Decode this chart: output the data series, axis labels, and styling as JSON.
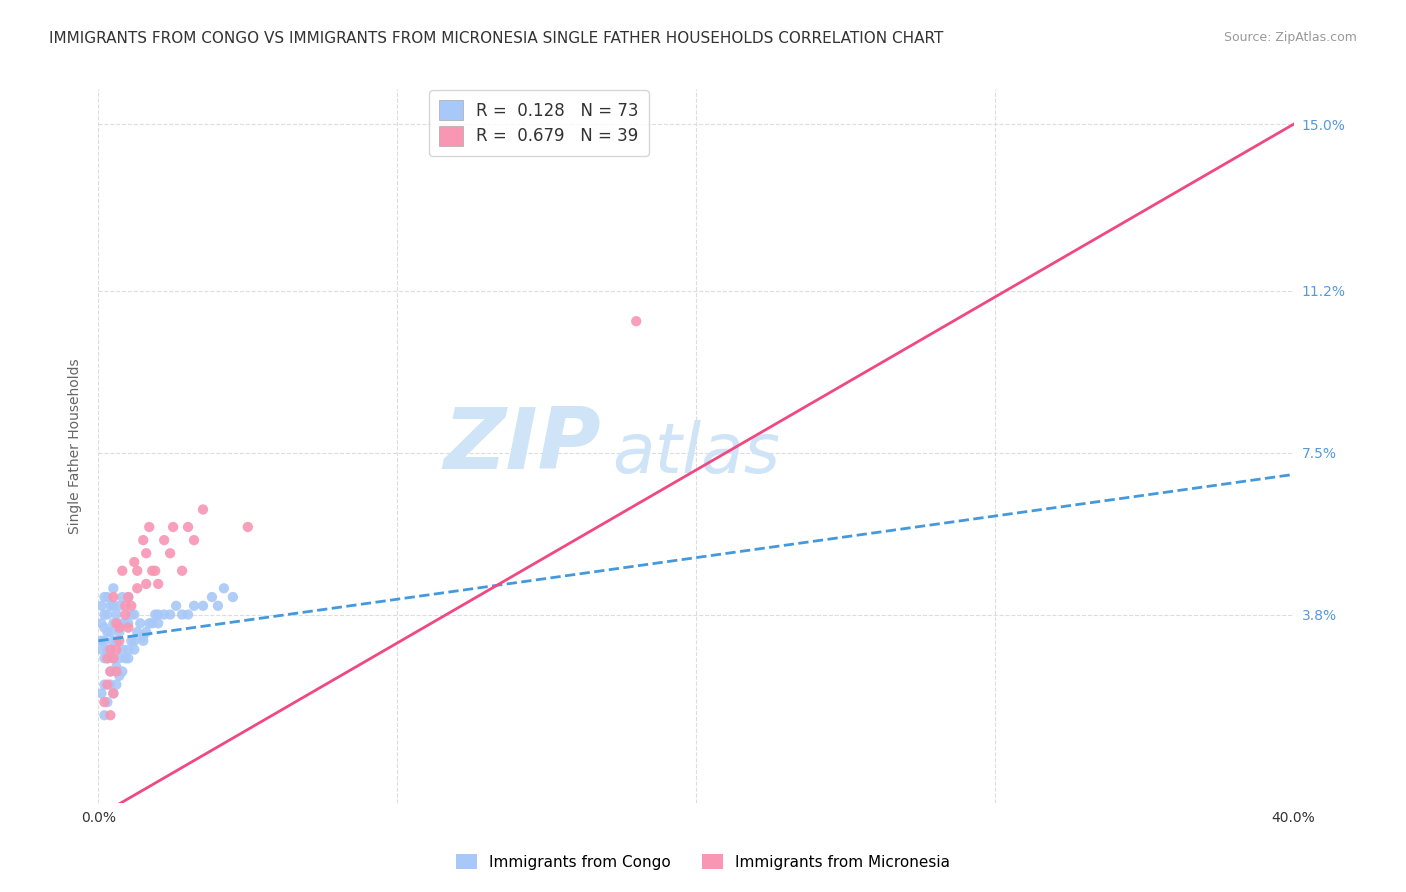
{
  "title": "IMMIGRANTS FROM CONGO VS IMMIGRANTS FROM MICRONESIA SINGLE FATHER HOUSEHOLDS CORRELATION CHART",
  "source": "Source: ZipAtlas.com",
  "ylabel": "Single Father Households",
  "xlim": [
    0.0,
    0.4
  ],
  "ylim": [
    -0.005,
    0.158
  ],
  "yticks": [
    0.038,
    0.075,
    0.112,
    0.15
  ],
  "yticklabels": [
    "3.8%",
    "7.5%",
    "11.2%",
    "15.0%"
  ],
  "xtick_left_label": "0.0%",
  "xtick_right_label": "40.0%",
  "congo_R": 0.128,
  "congo_N": 73,
  "micro_R": 0.679,
  "micro_N": 39,
  "congo_color": "#a8c8f8",
  "micro_color": "#f896b4",
  "congo_line_color": "#4499dd",
  "micro_line_color": "#f04880",
  "watermark_zip": "ZIP",
  "watermark_atlas": "atlas",
  "watermark_color": "#d0e4f8",
  "background_color": "#ffffff",
  "grid_color": "#dddddd",
  "title_fontsize": 11,
  "axis_label_fontsize": 10,
  "tick_fontsize": 10,
  "tick_color": "#5599dd",
  "congo_line_intercept": 0.032,
  "congo_line_slope": 0.095,
  "micro_line_intercept": -0.008,
  "micro_line_slope": 0.395,
  "congo_x": [
    0.001,
    0.001,
    0.001,
    0.001,
    0.002,
    0.002,
    0.002,
    0.002,
    0.002,
    0.003,
    0.003,
    0.003,
    0.003,
    0.003,
    0.004,
    0.004,
    0.004,
    0.004,
    0.005,
    0.005,
    0.005,
    0.005,
    0.005,
    0.006,
    0.006,
    0.006,
    0.007,
    0.007,
    0.007,
    0.008,
    0.008,
    0.008,
    0.009,
    0.009,
    0.01,
    0.01,
    0.01,
    0.011,
    0.011,
    0.012,
    0.012,
    0.013,
    0.014,
    0.015,
    0.016,
    0.017,
    0.018,
    0.019,
    0.02,
    0.022,
    0.024,
    0.026,
    0.028,
    0.03,
    0.032,
    0.035,
    0.038,
    0.04,
    0.042,
    0.045,
    0.001,
    0.002,
    0.002,
    0.003,
    0.004,
    0.005,
    0.006,
    0.007,
    0.008,
    0.01,
    0.012,
    0.015,
    0.02
  ],
  "congo_y": [
    0.03,
    0.032,
    0.036,
    0.04,
    0.028,
    0.032,
    0.035,
    0.038,
    0.042,
    0.028,
    0.03,
    0.034,
    0.038,
    0.042,
    0.025,
    0.03,
    0.034,
    0.04,
    0.028,
    0.032,
    0.036,
    0.04,
    0.044,
    0.026,
    0.032,
    0.038,
    0.028,
    0.034,
    0.04,
    0.03,
    0.036,
    0.042,
    0.028,
    0.036,
    0.03,
    0.036,
    0.042,
    0.032,
    0.038,
    0.032,
    0.038,
    0.034,
    0.036,
    0.032,
    0.034,
    0.036,
    0.036,
    0.038,
    0.036,
    0.038,
    0.038,
    0.04,
    0.038,
    0.038,
    0.04,
    0.04,
    0.042,
    0.04,
    0.044,
    0.042,
    0.02,
    0.015,
    0.022,
    0.018,
    0.022,
    0.02,
    0.022,
    0.024,
    0.025,
    0.028,
    0.03,
    0.033,
    0.038
  ],
  "micro_x": [
    0.002,
    0.003,
    0.004,
    0.004,
    0.005,
    0.005,
    0.006,
    0.006,
    0.007,
    0.008,
    0.009,
    0.01,
    0.012,
    0.013,
    0.015,
    0.016,
    0.017,
    0.018,
    0.02,
    0.022,
    0.024,
    0.025,
    0.028,
    0.03,
    0.032,
    0.035,
    0.003,
    0.005,
    0.007,
    0.009,
    0.011,
    0.013,
    0.016,
    0.019,
    0.05,
    0.18,
    0.004,
    0.006,
    0.01
  ],
  "micro_y": [
    0.018,
    0.022,
    0.03,
    0.015,
    0.028,
    0.042,
    0.036,
    0.025,
    0.035,
    0.048,
    0.04,
    0.042,
    0.05,
    0.048,
    0.055,
    0.052,
    0.058,
    0.048,
    0.045,
    0.055,
    0.052,
    0.058,
    0.048,
    0.058,
    0.055,
    0.062,
    0.028,
    0.02,
    0.032,
    0.038,
    0.04,
    0.044,
    0.045,
    0.048,
    0.058,
    0.105,
    0.025,
    0.03,
    0.035
  ]
}
